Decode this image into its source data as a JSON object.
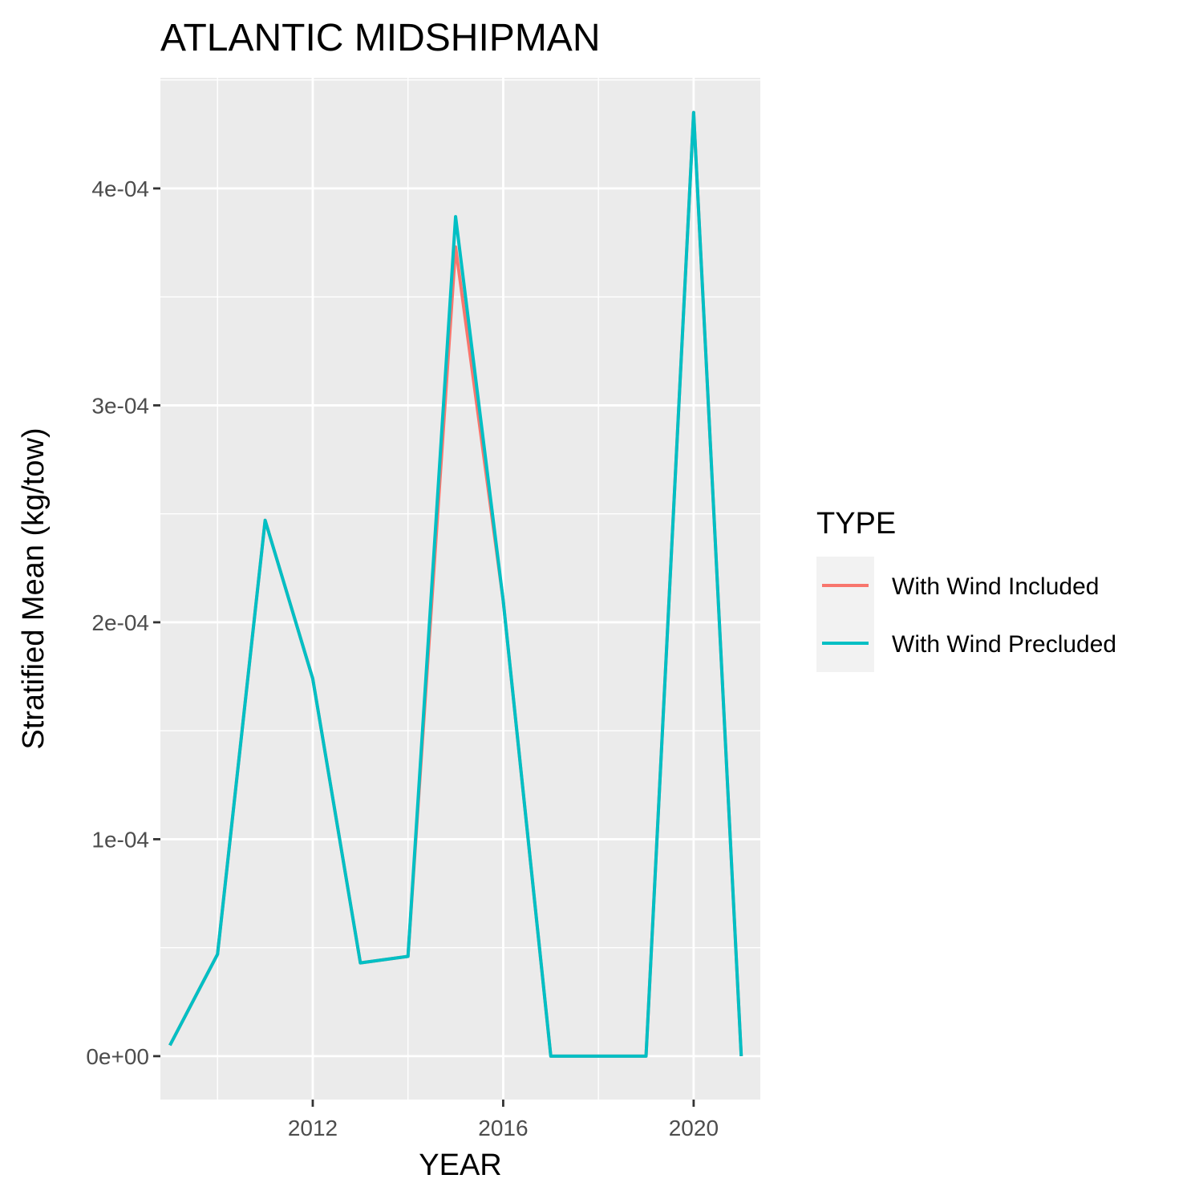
{
  "chart_data": {
    "type": "line",
    "title": "ATLANTIC MIDSHIPMAN",
    "xlabel": "YEAR",
    "ylabel": "Stratified Mean (kg/tow)",
    "xlim": [
      2008.8,
      2021.4
    ],
    "ylim": [
      -2e-05,
      0.000451
    ],
    "x_ticks": [
      2012,
      2016,
      2020
    ],
    "x_tick_labels": [
      "2012",
      "2016",
      "2020"
    ],
    "x_minor_ticks": [
      2010,
      2014,
      2018
    ],
    "y_ticks": [
      0,
      0.0001,
      0.0002,
      0.0003,
      0.0004
    ],
    "y_tick_labels": [
      "0e+00",
      "1e-04",
      "2e-04",
      "3e-04",
      "4e-04"
    ],
    "y_minor_ticks": [
      5e-05,
      0.00015,
      0.00025,
      0.00035,
      0.00045
    ],
    "grid": true,
    "legend": {
      "title": "TYPE",
      "position": "right"
    },
    "x": [
      2009,
      2010,
      2011,
      2012,
      2013,
      2014,
      2015,
      2016,
      2017,
      2018,
      2019,
      2020,
      2021
    ],
    "series": [
      {
        "name": "With Wind Included",
        "color": "#F8766D",
        "values": [
          5e-06,
          4.7e-05,
          0.000247,
          0.000174,
          4.3e-05,
          4.6e-05,
          0.000373,
          0.00021,
          0,
          0,
          0,
          0.000435,
          0
        ]
      },
      {
        "name": "With Wind Precluded",
        "color": "#00BFC4",
        "values": [
          5e-06,
          4.7e-05,
          0.000247,
          0.000174,
          4.3e-05,
          4.6e-05,
          0.000387,
          0.00021,
          0,
          0,
          0,
          0.000435,
          0
        ]
      }
    ],
    "colors": {
      "panel_background": "#EBEBEB",
      "grid": "#FFFFFF",
      "tick_text": "#4D4D4D",
      "legend_key_background": "#F2F2F2"
    }
  }
}
